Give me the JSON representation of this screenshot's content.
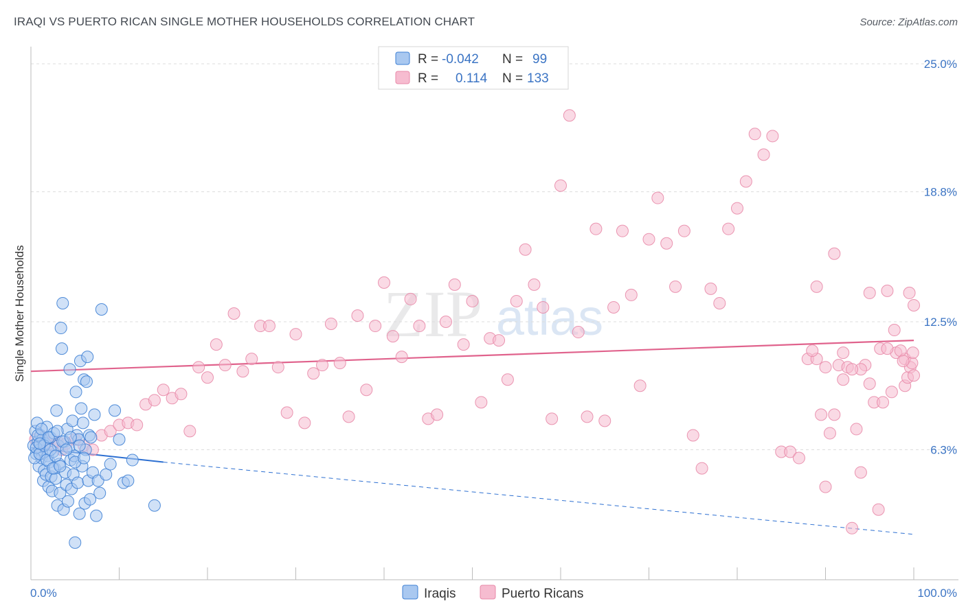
{
  "title": "IRAQI VS PUERTO RICAN SINGLE MOTHER HOUSEHOLDS CORRELATION CHART",
  "source": "Source: ZipAtlas.com",
  "watermark": {
    "zip": "ZIP",
    "atlas": "atlas"
  },
  "colors": {
    "iraqi_fill": "#a9c8f0",
    "iraqi_stroke": "#3d7fd4",
    "iraqi_line": "#2c6fd1",
    "pr_fill": "#f6bcd0",
    "pr_stroke": "#e889a8",
    "pr_line": "#e0628c",
    "tick_text": "#3b74c4",
    "grid": "#dddddd"
  },
  "legend": {
    "r_label": "R =",
    "n_label": "N =",
    "rows": [
      {
        "series": "Iraqis",
        "r": "-0.042",
        "n": "99"
      },
      {
        "series": "Puerto Ricans",
        "r": "0.114",
        "n": "133"
      }
    ]
  },
  "chart_data": {
    "type": "scatter",
    "title": "IRAQI VS PUERTO RICAN SINGLE MOTHER HOUSEHOLDS CORRELATION CHART",
    "xlabel": "",
    "ylabel": "Single Mother Households",
    "xlim": [
      0,
      100
    ],
    "ylim": [
      0,
      25.5
    ],
    "x_tick_labels": [
      {
        "value": 0,
        "label": "0.0%"
      },
      {
        "value": 100,
        "label": "100.0%"
      }
    ],
    "y_tick_labels": [
      {
        "value": 6.3,
        "label": "6.3%"
      },
      {
        "value": 12.5,
        "label": "12.5%"
      },
      {
        "value": 18.8,
        "label": "18.8%"
      },
      {
        "value": 25.0,
        "label": "25.0%"
      }
    ],
    "series": [
      {
        "name": "Iraqis",
        "trend": {
          "x0": 0,
          "y0": 6.4,
          "x1": 15,
          "y1": 5.7,
          "dashed_to_x": 100,
          "dashed_to_y": 2.2
        },
        "points": [
          [
            0.3,
            6.5
          ],
          [
            0.5,
            7.2
          ],
          [
            0.6,
            6.1
          ],
          [
            0.7,
            7.6
          ],
          [
            0.8,
            6.7
          ],
          [
            0.9,
            5.5
          ],
          [
            1.0,
            6.3
          ],
          [
            1.1,
            7.0
          ],
          [
            1.2,
            5.9
          ],
          [
            1.3,
            6.8
          ],
          [
            1.4,
            4.8
          ],
          [
            1.5,
            5.3
          ],
          [
            1.6,
            6.6
          ],
          [
            1.7,
            5.1
          ],
          [
            1.8,
            7.4
          ],
          [
            1.9,
            6.0
          ],
          [
            2.0,
            4.5
          ],
          [
            2.1,
            5.7
          ],
          [
            2.2,
            6.9
          ],
          [
            2.3,
            5.0
          ],
          [
            2.4,
            4.3
          ],
          [
            2.5,
            6.2
          ],
          [
            2.6,
            7.1
          ],
          [
            2.7,
            5.4
          ],
          [
            2.8,
            4.9
          ],
          [
            2.9,
            8.2
          ],
          [
            3.0,
            3.6
          ],
          [
            3.1,
            6.5
          ],
          [
            3.2,
            5.6
          ],
          [
            3.3,
            4.2
          ],
          [
            3.4,
            12.2
          ],
          [
            3.5,
            11.2
          ],
          [
            3.6,
            13.4
          ],
          [
            3.7,
            3.4
          ],
          [
            3.8,
            6.7
          ],
          [
            3.9,
            5.2
          ],
          [
            4.0,
            4.6
          ],
          [
            4.1,
            7.3
          ],
          [
            4.2,
            3.8
          ],
          [
            4.3,
            6.4
          ],
          [
            4.4,
            10.2
          ],
          [
            4.5,
            5.8
          ],
          [
            4.6,
            4.4
          ],
          [
            4.7,
            7.7
          ],
          [
            4.8,
            5.1
          ],
          [
            4.9,
            6.0
          ],
          [
            5.0,
            1.8
          ],
          [
            5.1,
            9.1
          ],
          [
            5.2,
            7.0
          ],
          [
            5.3,
            4.7
          ],
          [
            5.4,
            6.8
          ],
          [
            5.5,
            3.2
          ],
          [
            5.6,
            10.6
          ],
          [
            5.7,
            8.3
          ],
          [
            5.8,
            5.5
          ],
          [
            5.9,
            7.6
          ],
          [
            6.0,
            9.7
          ],
          [
            6.1,
            3.7
          ],
          [
            6.2,
            6.3
          ],
          [
            6.3,
            9.6
          ],
          [
            6.4,
            10.8
          ],
          [
            6.5,
            4.8
          ],
          [
            6.6,
            7.0
          ],
          [
            6.7,
            3.9
          ],
          [
            6.8,
            6.9
          ],
          [
            7.0,
            5.2
          ],
          [
            7.2,
            8.0
          ],
          [
            7.4,
            3.1
          ],
          [
            7.6,
            4.8
          ],
          [
            7.8,
            4.2
          ],
          [
            8.0,
            13.1
          ],
          [
            8.5,
            5.1
          ],
          [
            9.0,
            5.6
          ],
          [
            9.5,
            8.2
          ],
          [
            10.0,
            6.8
          ],
          [
            10.5,
            4.7
          ],
          [
            11.0,
            4.8
          ],
          [
            11.5,
            5.8
          ],
          [
            0.4,
            5.9
          ],
          [
            0.6,
            6.4
          ],
          [
            0.8,
            7.0
          ],
          [
            1.0,
            6.1
          ],
          [
            1.2,
            7.3
          ],
          [
            1.5,
            6.5
          ],
          [
            1.8,
            5.8
          ],
          [
            2.0,
            6.9
          ],
          [
            2.2,
            6.3
          ],
          [
            2.5,
            5.4
          ],
          [
            2.8,
            6.0
          ],
          [
            3.0,
            7.2
          ],
          [
            3.3,
            5.5
          ],
          [
            3.6,
            6.7
          ],
          [
            4.0,
            6.3
          ],
          [
            4.5,
            6.9
          ],
          [
            5.0,
            5.7
          ],
          [
            5.5,
            6.5
          ],
          [
            6.0,
            5.9
          ],
          [
            14.0,
            3.6
          ],
          [
            1.0,
            6.6
          ]
        ]
      },
      {
        "name": "Puerto Ricans",
        "trend": {
          "x0": 0,
          "y0": 10.1,
          "x1": 100,
          "y1": 11.6
        },
        "points": [
          [
            0.5,
            6.8
          ],
          [
            1.0,
            6.4
          ],
          [
            1.5,
            6.9
          ],
          [
            2.0,
            6.6
          ],
          [
            2.5,
            6.5
          ],
          [
            3.0,
            6.7
          ],
          [
            3.5,
            6.3
          ],
          [
            4.0,
            6.6
          ],
          [
            5.0,
            6.8
          ],
          [
            6.0,
            6.5
          ],
          [
            7.0,
            6.3
          ],
          [
            8.0,
            7.0
          ],
          [
            9.0,
            7.2
          ],
          [
            10.0,
            7.5
          ],
          [
            11.0,
            7.6
          ],
          [
            12.0,
            7.5
          ],
          [
            13.0,
            8.5
          ],
          [
            14.0,
            8.7
          ],
          [
            15.0,
            9.2
          ],
          [
            16.0,
            8.8
          ],
          [
            17.0,
            9.0
          ],
          [
            18.0,
            7.2
          ],
          [
            19.0,
            10.3
          ],
          [
            20.0,
            9.8
          ],
          [
            21.0,
            11.4
          ],
          [
            22.0,
            10.4
          ],
          [
            23.0,
            12.9
          ],
          [
            24.0,
            10.1
          ],
          [
            25.0,
            10.7
          ],
          [
            26.0,
            12.3
          ],
          [
            27.0,
            12.3
          ],
          [
            28.0,
            10.3
          ],
          [
            29.0,
            8.1
          ],
          [
            30.0,
            11.9
          ],
          [
            31.0,
            7.6
          ],
          [
            32.0,
            10.0
          ],
          [
            33.0,
            10.4
          ],
          [
            34.0,
            12.4
          ],
          [
            35.0,
            10.5
          ],
          [
            36.0,
            7.9
          ],
          [
            37.0,
            12.8
          ],
          [
            38.0,
            9.2
          ],
          [
            39.0,
            12.3
          ],
          [
            40.0,
            14.4
          ],
          [
            41.0,
            11.8
          ],
          [
            42.0,
            10.8
          ],
          [
            43.0,
            13.6
          ],
          [
            44.0,
            12.3
          ],
          [
            45.0,
            7.8
          ],
          [
            46.0,
            8.0
          ],
          [
            47.0,
            12.5
          ],
          [
            48.0,
            14.3
          ],
          [
            49.0,
            11.4
          ],
          [
            50.0,
            13.5
          ],
          [
            51.0,
            8.6
          ],
          [
            52.0,
            11.7
          ],
          [
            53.0,
            11.6
          ],
          [
            54.0,
            9.7
          ],
          [
            55.0,
            13.5
          ],
          [
            56.0,
            16.0
          ],
          [
            57.0,
            14.3
          ],
          [
            58.0,
            13.2
          ],
          [
            59.0,
            7.8
          ],
          [
            60.0,
            19.1
          ],
          [
            61.0,
            22.5
          ],
          [
            62.0,
            12.0
          ],
          [
            63.0,
            7.9
          ],
          [
            64.0,
            17.0
          ],
          [
            65.0,
            7.7
          ],
          [
            66.0,
            13.2
          ],
          [
            67.0,
            16.9
          ],
          [
            68.0,
            13.8
          ],
          [
            69.0,
            9.4
          ],
          [
            70.0,
            16.5
          ],
          [
            71.0,
            18.5
          ],
          [
            72.0,
            16.3
          ],
          [
            73.0,
            14.2
          ],
          [
            74.0,
            16.9
          ],
          [
            75.0,
            7.0
          ],
          [
            76.0,
            5.4
          ],
          [
            77.0,
            14.1
          ],
          [
            78.0,
            13.4
          ],
          [
            79.0,
            17.0
          ],
          [
            80.0,
            18.0
          ],
          [
            81.0,
            19.3
          ],
          [
            82.0,
            21.6
          ],
          [
            83.0,
            20.6
          ],
          [
            84.0,
            21.5
          ],
          [
            85.0,
            6.2
          ],
          [
            86.0,
            6.2
          ],
          [
            87.0,
            5.9
          ],
          [
            88.0,
            10.7
          ],
          [
            89.0,
            14.2
          ],
          [
            90.0,
            4.5
          ],
          [
            91.0,
            15.8
          ],
          [
            92.0,
            9.7
          ],
          [
            93.0,
            2.5
          ],
          [
            94.0,
            5.2
          ],
          [
            95.0,
            13.9
          ],
          [
            96.0,
            3.4
          ],
          [
            97.0,
            14.0
          ],
          [
            98.0,
            11.0
          ],
          [
            99.0,
            10.7
          ],
          [
            99.5,
            13.9
          ],
          [
            100.0,
            13.3
          ],
          [
            89.5,
            8.0
          ],
          [
            90.5,
            7.1
          ],
          [
            91.5,
            10.4
          ],
          [
            92.5,
            10.3
          ],
          [
            93.5,
            7.3
          ],
          [
            94.5,
            10.4
          ],
          [
            95.5,
            8.6
          ],
          [
            96.5,
            8.6
          ],
          [
            97.5,
            9.1
          ],
          [
            98.5,
            11.1
          ],
          [
            99.0,
            9.4
          ],
          [
            99.3,
            9.8
          ],
          [
            99.6,
            10.3
          ],
          [
            99.8,
            10.5
          ],
          [
            100.0,
            9.9
          ],
          [
            97.8,
            12.1
          ],
          [
            96.2,
            11.2
          ],
          [
            95.0,
            9.5
          ],
          [
            94.0,
            10.2
          ],
          [
            93.0,
            10.2
          ],
          [
            92.0,
            11.0
          ],
          [
            91.0,
            8.0
          ],
          [
            90.0,
            10.3
          ],
          [
            89.0,
            10.7
          ],
          [
            88.5,
            11.1
          ],
          [
            98.8,
            10.6
          ],
          [
            99.9,
            11.0
          ],
          [
            97.0,
            11.2
          ]
        ]
      }
    ],
    "bottom_legend": [
      "Iraqis",
      "Puerto Ricans"
    ]
  }
}
